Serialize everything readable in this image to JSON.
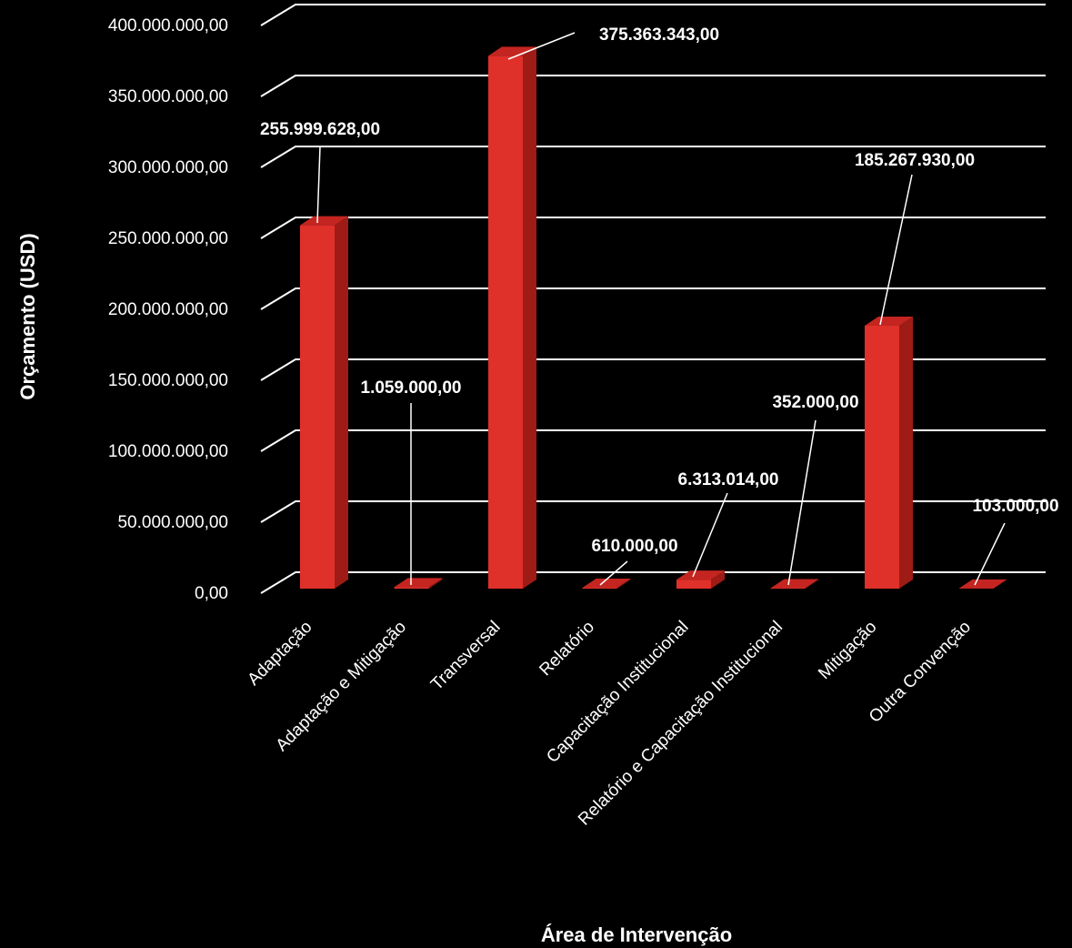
{
  "chart_data": {
    "type": "bar",
    "style": "3d-column",
    "xlabel": "Área de Intervenção",
    "ylabel": "Orçamento (USD)",
    "ylim": [
      0,
      400000000
    ],
    "yticks": [
      0,
      50000000,
      100000000,
      150000000,
      200000000,
      250000000,
      300000000,
      350000000,
      400000000
    ],
    "ytick_labels": [
      "0,00",
      "50.000.000,00",
      "100.000.000,00",
      "150.000.000,00",
      "200.000.000,00",
      "250.000.000,00",
      "300.000.000,00",
      "350.000.000,00",
      "400.000.000,00"
    ],
    "grid": true,
    "legend": "none",
    "categories": [
      "Adaptação",
      "Adaptação e Mitigação",
      "Transversal",
      "Relatório",
      "Capacitação Institucional",
      "Relatório e Capacitação Institucional",
      "Mitigação",
      "Outra Convenção"
    ],
    "values": [
      255999628,
      1059000,
      375363343,
      610000,
      6313014,
      352000,
      185267930,
      103000
    ],
    "data_labels": [
      "255.999.628,00",
      "1.059.000,00",
      "375.363.343,00",
      "610.000,00",
      "6.313.014,00",
      "352.000,00",
      "185.267.930,00",
      "103.000,00"
    ],
    "colors": {
      "bar_front": "#e0302a",
      "bar_side": "#9e1b16",
      "bar_top": "#c42520",
      "grid": "#ffffff",
      "text": "#ffffff",
      "background": "#000000"
    }
  }
}
